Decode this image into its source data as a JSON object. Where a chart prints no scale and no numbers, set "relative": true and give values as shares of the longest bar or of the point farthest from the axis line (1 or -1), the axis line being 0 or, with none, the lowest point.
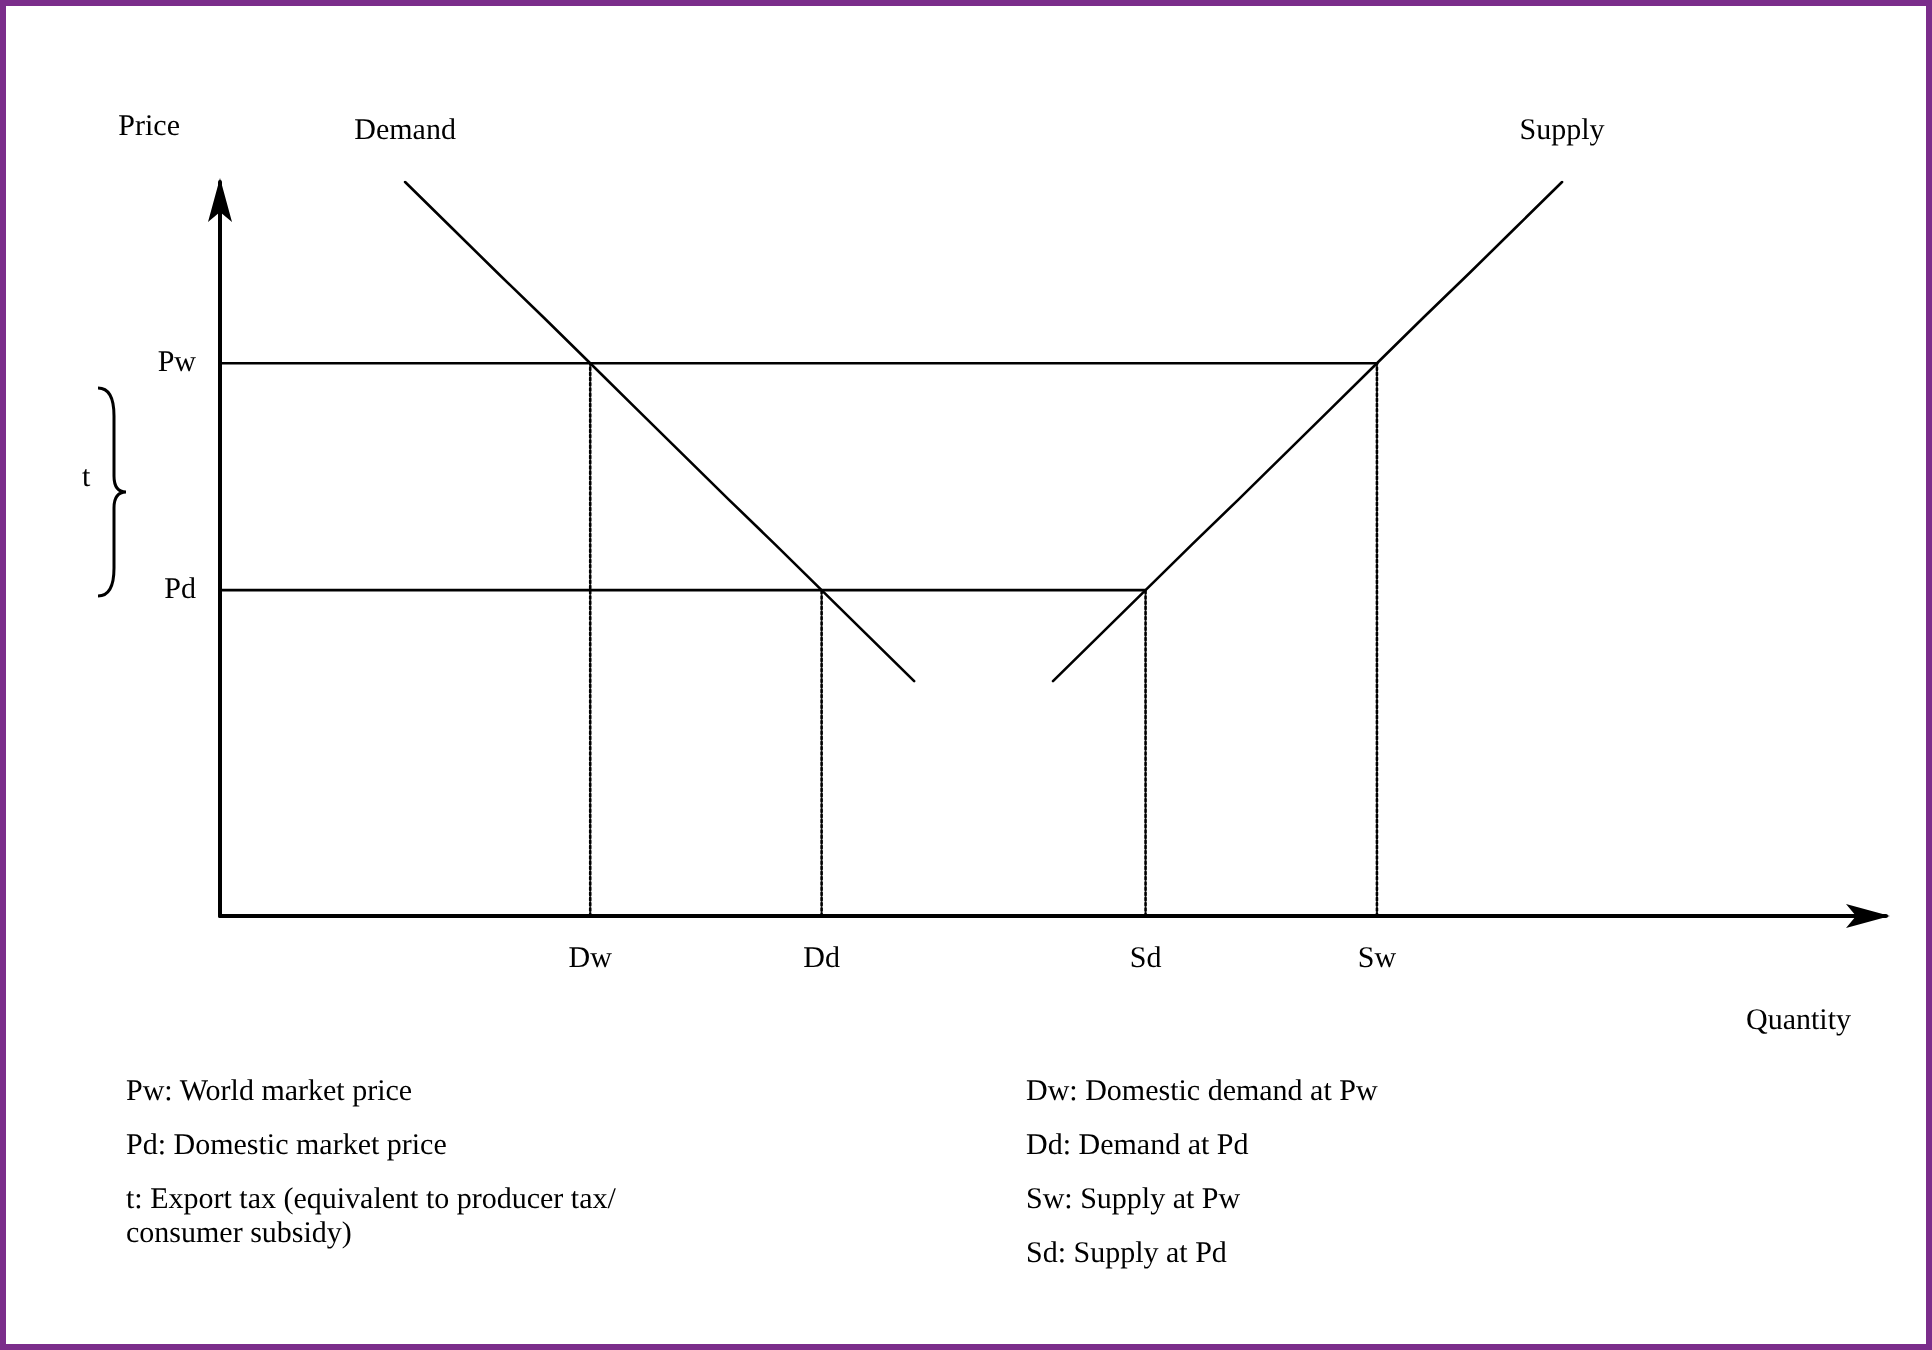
{
  "chart_data": {
    "type": "line",
    "relative": true,
    "xlabel": "Quantity",
    "ylabel": "Price",
    "grid": false,
    "legend": false,
    "marker": "none",
    "categories": [
      null,
      null,
      null,
      null,
      null,
      null,
      null,
      null,
      "Dw",
      null,
      null,
      null,
      null,
      "Dd",
      null,
      null,
      null,
      null,
      null,
      null,
      "Sd",
      null,
      null,
      null,
      null,
      "Sw",
      null,
      null,
      null,
      null,
      null,
      null,
      null,
      null,
      null,
      null,
      null
    ],
    "series": [
      {
        "name": "Demand",
        "color": "#000000",
        "line_style": "solid",
        "values": [
          null,
          null,
          null,
          null,
          1,
          0.938,
          0.876,
          0.815,
          0.753,
          0.691,
          0.629,
          0.567,
          0.506,
          0.444,
          0.382,
          0.32,
          null,
          null,
          null,
          null,
          null,
          null,
          null,
          null,
          null,
          null,
          null,
          null,
          null,
          null,
          null,
          null,
          null,
          null,
          null,
          null,
          null
        ]
      },
      {
        "name": "Supply",
        "color": "#000000",
        "line_style": "solid",
        "values": [
          null,
          null,
          null,
          null,
          null,
          null,
          null,
          null,
          null,
          null,
          null,
          null,
          null,
          null,
          null,
          null,
          null,
          null,
          0.32,
          0.382,
          0.444,
          0.506,
          0.567,
          0.629,
          0.691,
          0.753,
          0.815,
          0.876,
          0.938,
          1,
          null,
          null,
          null,
          null,
          null,
          null,
          null
        ]
      },
      {
        "name": "Pw",
        "color": "#000000",
        "line_style": "solid",
        "values": [
          0.753,
          0.753,
          0.753,
          0.753,
          0.753,
          0.753,
          0.753,
          0.753,
          0.753,
          0.753,
          0.753,
          0.753,
          0.753,
          0.753,
          0.753,
          0.753,
          0.753,
          0.753,
          0.753,
          0.753,
          0.753,
          0.753,
          0.753,
          0.753,
          0.753,
          0.753,
          null,
          null,
          null,
          null,
          null,
          null,
          null,
          null,
          null,
          null,
          null
        ]
      },
      {
        "name": "Pd",
        "color": "#000000",
        "line_style": "solid",
        "values": [
          0.444,
          0.444,
          0.444,
          0.444,
          0.444,
          0.444,
          0.444,
          0.444,
          0.444,
          0.444,
          0.444,
          0.444,
          0.444,
          0.444,
          0.444,
          0.444,
          0.444,
          0.444,
          0.444,
          0.444,
          0.444,
          null,
          null,
          null,
          null,
          null,
          null,
          null,
          null,
          null,
          null,
          null,
          null,
          null,
          null,
          null,
          null
        ]
      },
      {
        "color": "#000000",
        "line_style": "dotted",
        "x": [
          "Dw",
          "Dw"
        ],
        "values": [
          0,
          0.753
        ]
      },
      {
        "color": "#000000",
        "line_style": "dotted",
        "x": [
          "Dd",
          "Dd"
        ],
        "values": [
          0,
          0.444
        ]
      },
      {
        "color": "#000000",
        "line_style": "dotted",
        "x": [
          "Sd",
          "Sd"
        ],
        "values": [
          0,
          0.444
        ]
      },
      {
        "color": "#000000",
        "line_style": "dotted",
        "x": [
          "Sw",
          "Sw"
        ],
        "values": [
          0,
          0.753
        ]
      }
    ],
    "annotations": [
      "t",
      "Pw: World market price",
      "Pd: Domestic market price",
      "t: Export tax (equivalent to producer tax/ consumer subsidy)",
      "Dw: Domestic demand at Pw",
      "Dd: Demand at Pd",
      "Sw: Supply at Pw",
      "Sd: Supply at Pd"
    ]
  }
}
